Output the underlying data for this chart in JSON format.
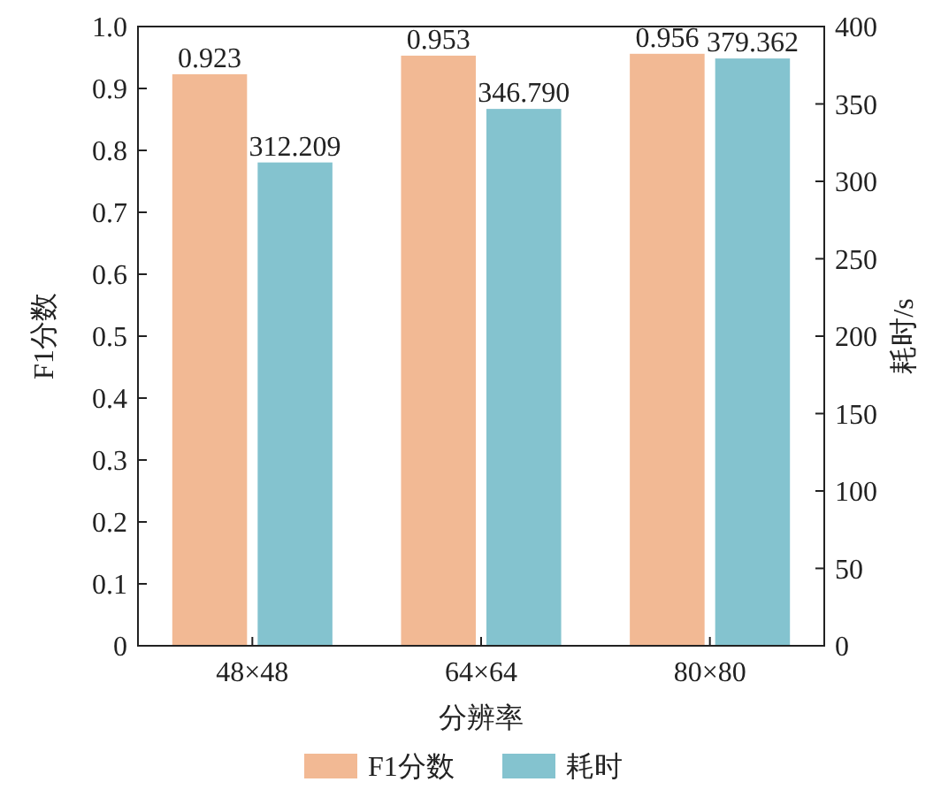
{
  "chart_data": {
    "type": "bar",
    "xlabel": "分辨率",
    "ylabel": "F1分数",
    "y2label": "耗时/s",
    "categories": [
      "48×48",
      "64×64",
      "80×80"
    ],
    "series": [
      {
        "name": "F1分数",
        "color": "#f2b994",
        "values": [
          0.923,
          0.953,
          0.956
        ],
        "value_labels": [
          "0.923",
          "0.953",
          "0.956"
        ]
      },
      {
        "name": "耗时",
        "color": "#84c3cf",
        "values": [
          312.209,
          346.79,
          379.362
        ],
        "value_labels": [
          "312.209",
          "346.790",
          "379.362"
        ],
        "axis": "y2"
      }
    ],
    "ylim": [
      0,
      1
    ],
    "yticks": [
      0,
      0.1,
      0.2,
      0.3,
      0.4,
      0.5,
      0.6,
      0.7,
      0.8,
      0.9,
      {
        "value": 1,
        "label": "1.0"
      }
    ],
    "y2lim": [
      0,
      400
    ],
    "y2ticks": [
      0,
      50,
      100,
      150,
      200,
      250,
      300,
      350,
      400
    ],
    "legend": "bottom",
    "grid": false
  }
}
